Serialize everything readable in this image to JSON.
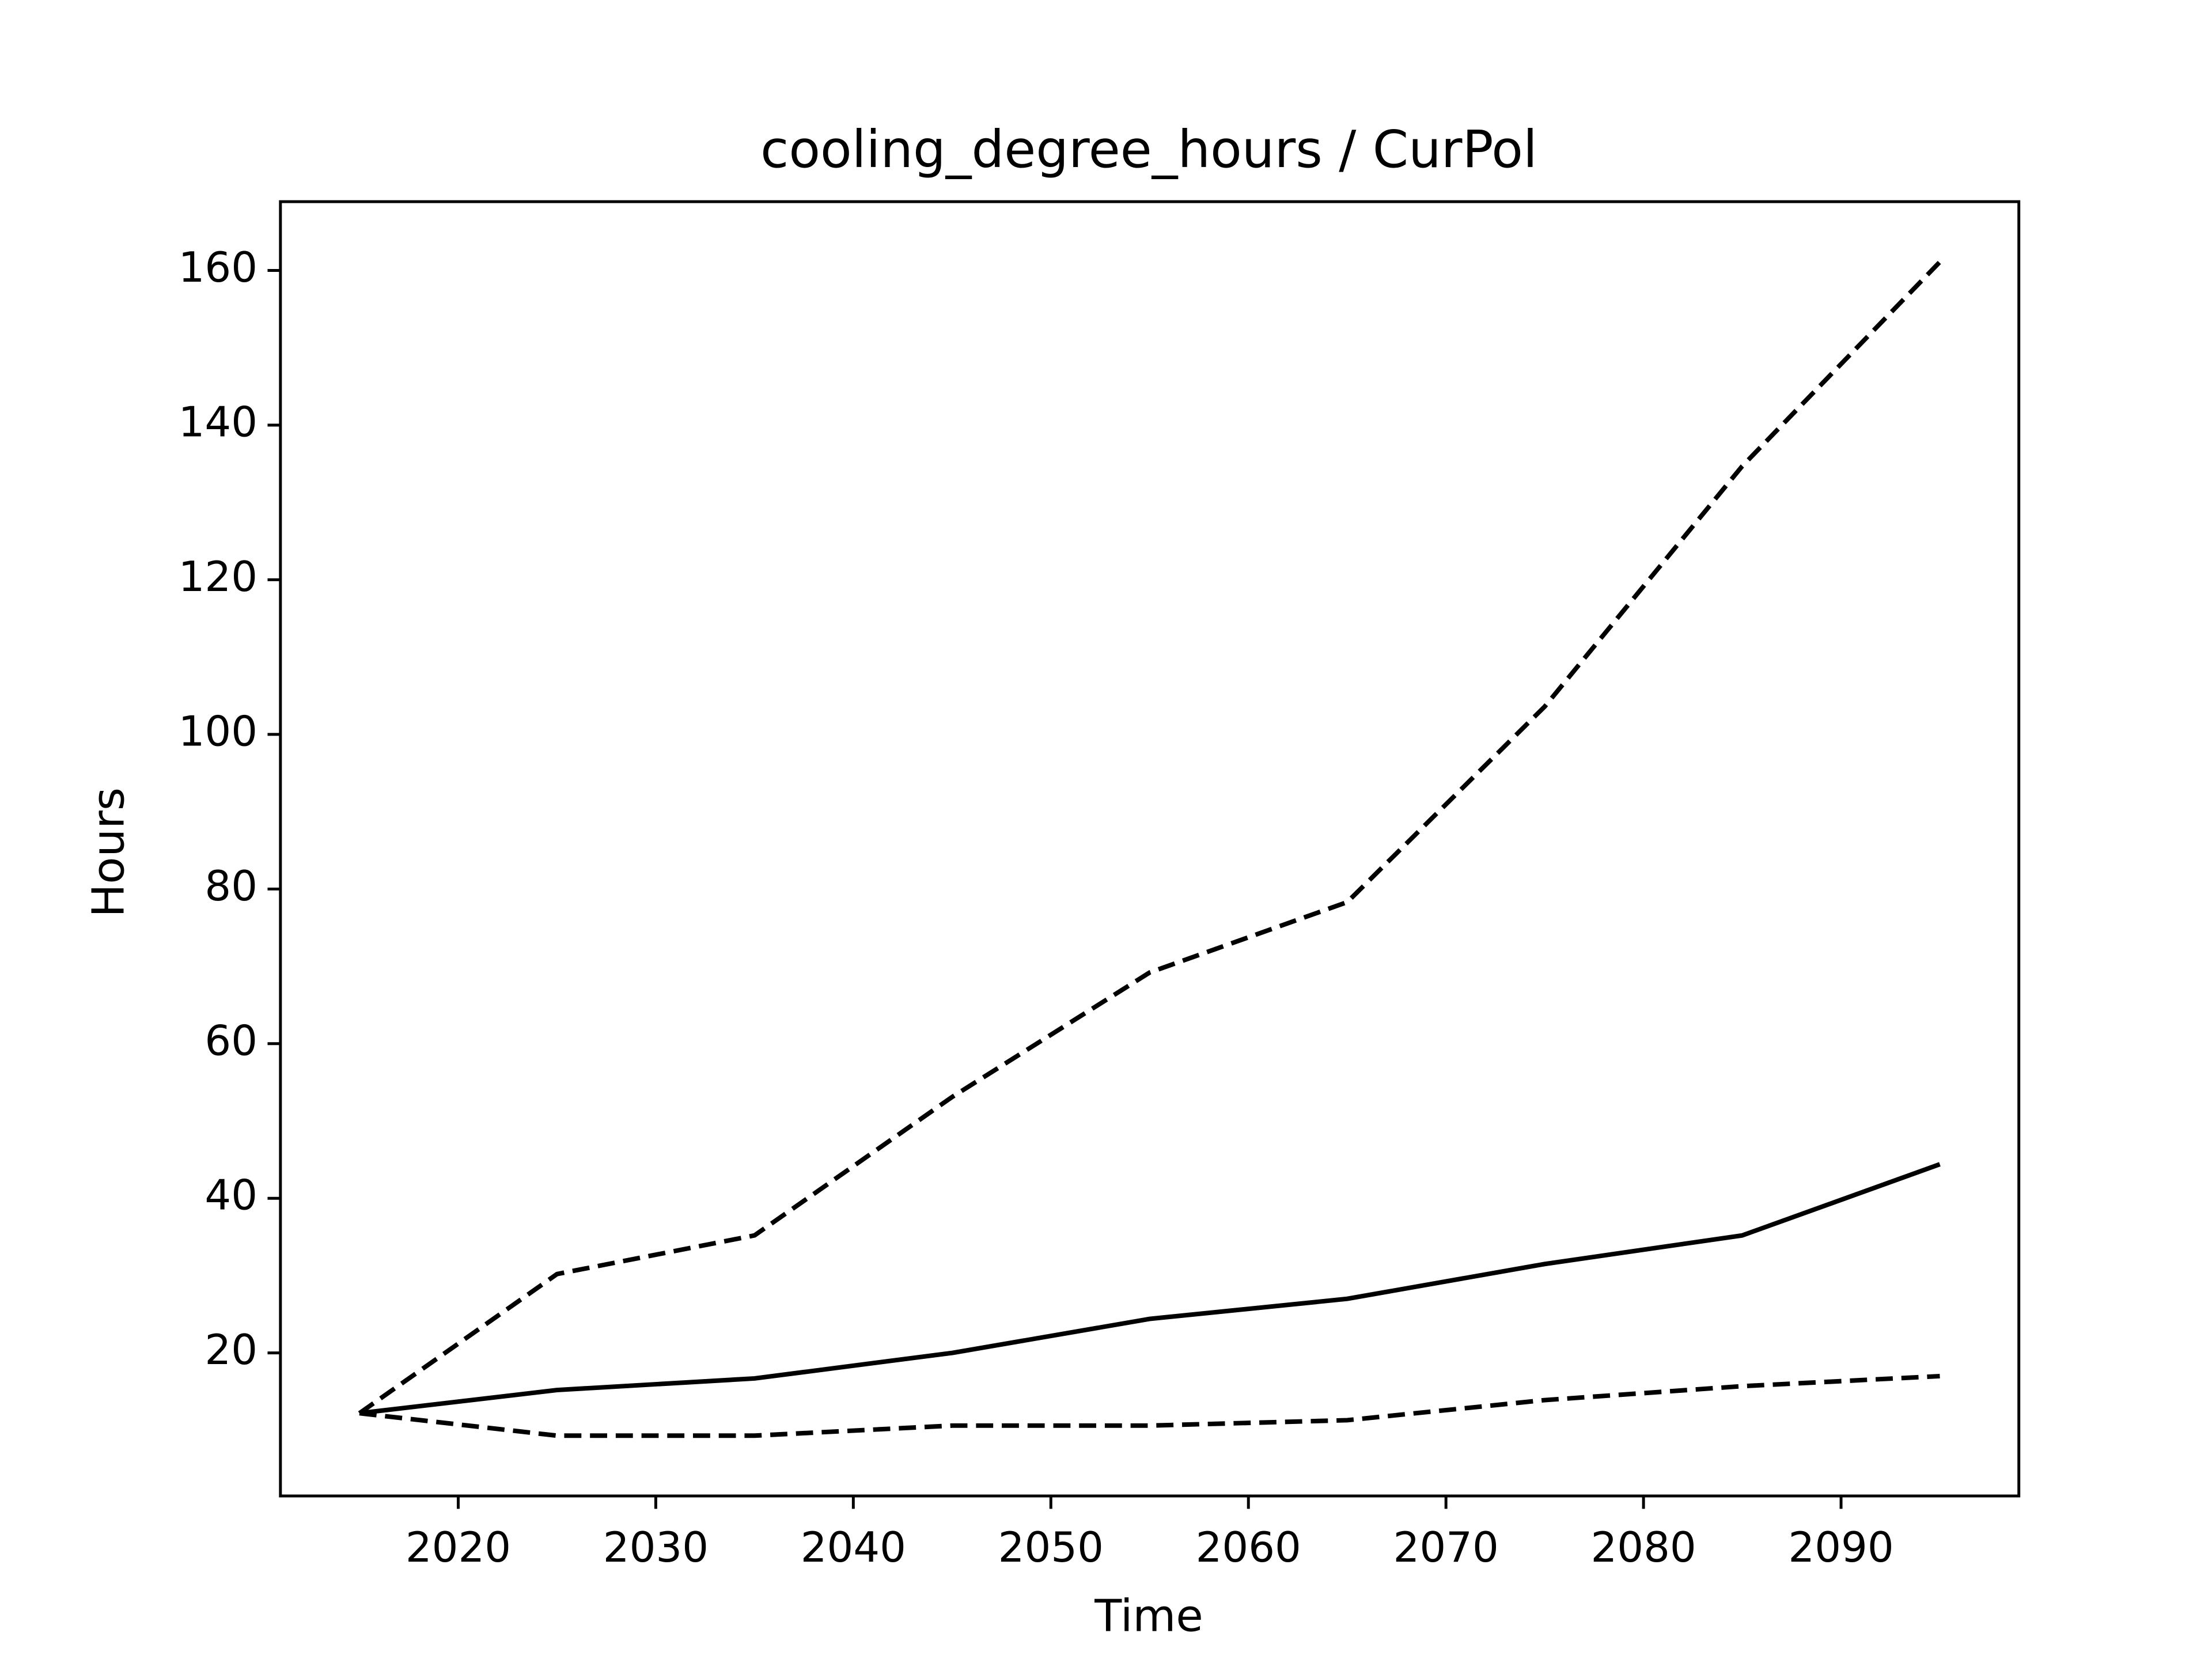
{
  "chart_data": {
    "type": "line",
    "title": "cooling_degree_hours / CurPol",
    "xlabel": "Time",
    "ylabel": "Hours",
    "x": [
      2015,
      2025,
      2035,
      2045,
      2055,
      2065,
      2075,
      2085,
      2095
    ],
    "series": [
      {
        "color": "#000000",
        "dashed": false,
        "values": [
          12.2,
          15.2,
          16.7,
          20.0,
          24.4,
          27.0,
          31.5,
          35.2,
          44.4
        ]
      },
      {
        "color": "#000000",
        "dashed": true,
        "values": [
          12.2,
          30.2,
          35.2,
          53.1,
          69.2,
          78.3,
          103.6,
          134.7,
          161.1
        ]
      },
      {
        "color": "#000000",
        "dashed": true,
        "values": [
          12.2,
          9.3,
          9.3,
          10.6,
          10.6,
          11.3,
          13.9,
          15.7,
          17.0
        ]
      }
    ],
    "xlim": [
      2011,
      2099
    ],
    "xticks": [
      2020,
      2030,
      2040,
      2050,
      2060,
      2070,
      2080,
      2090
    ],
    "ylim": [
      1.5,
      168.9
    ],
    "yticks": [
      20,
      40,
      60,
      80,
      100,
      120,
      140,
      160
    ],
    "grid": false
  }
}
